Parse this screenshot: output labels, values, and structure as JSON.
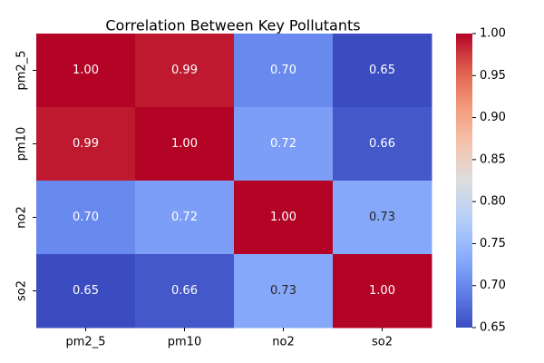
{
  "chart_data": {
    "type": "heatmap",
    "title": "Correlation Between Key Pollutants",
    "xlabel": "",
    "ylabel": "",
    "rows": [
      "pm2_5",
      "pm10",
      "no2",
      "so2"
    ],
    "columns": [
      "pm2_5",
      "pm10",
      "no2",
      "so2"
    ],
    "values": [
      [
        1.0,
        0.99,
        0.7,
        0.65
      ],
      [
        0.99,
        1.0,
        0.72,
        0.66
      ],
      [
        0.7,
        0.72,
        1.0,
        0.73
      ],
      [
        0.65,
        0.66,
        0.73,
        1.0
      ]
    ],
    "value_format": "0.00",
    "colormap": "coolwarm",
    "colorbar": {
      "range": [
        0.65,
        1.0
      ],
      "ticks": [
        "0.65",
        "0.70",
        "0.75",
        "0.80",
        "0.85",
        "0.90",
        "0.95",
        "1.00"
      ]
    },
    "grid": false
  }
}
